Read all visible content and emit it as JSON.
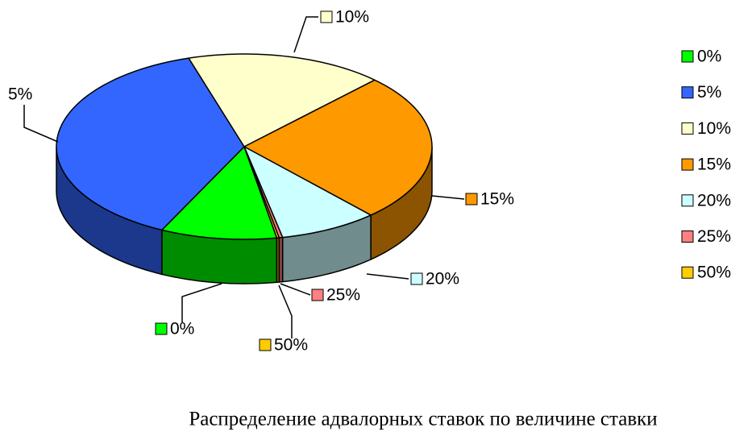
{
  "chart_data": {
    "type": "pie3d",
    "title": "Распределение адвалорных ставок по величине ставки",
    "categories": [
      "0%",
      "5%",
      "10%",
      "15%",
      "20%",
      "25%",
      "50%"
    ],
    "series": [
      {
        "values": [
          10,
          38,
          17,
          26,
          8.5,
          0.3,
          0.2
        ],
        "colors": [
          "#00ff00",
          "#3366ff",
          "#ffffcc",
          "#ff9900",
          "#ccffff",
          "#ff8080",
          "#ffcc00"
        ]
      }
    ],
    "legend": "right"
  }
}
